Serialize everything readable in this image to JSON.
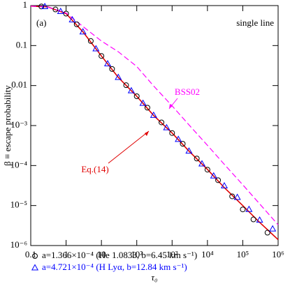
{
  "chart_data": {
    "type": "scatter",
    "x_label": "τ₀",
    "y_label": "β ≡ escape probability",
    "panel_label": "(a)",
    "corner_label": "single line",
    "annotations": [
      {
        "text": "BSS02",
        "color": "#ff00ff"
      },
      {
        "text": "Eq.(14)",
        "color": "#e00000"
      }
    ],
    "xscale": "log",
    "yscale": "log",
    "xlim": [
      0.1,
      1000000
    ],
    "ylim": [
      1e-06,
      1
    ],
    "xticks": [
      0.1,
      1,
      10,
      {
        "value": 100,
        "label": "10²"
      },
      {
        "value": 1000,
        "label": "10³"
      },
      {
        "value": 10000,
        "label": "10⁴"
      },
      {
        "value": 100000,
        "label": "10⁵"
      },
      {
        "value": 1000000,
        "label": "10⁶"
      }
    ],
    "yticks": [
      {
        "value": 1e-06,
        "label": "10⁻⁶"
      },
      {
        "value": 1e-05,
        "label": "10⁻⁵"
      },
      {
        "value": 0.0001,
        "label": "10⁻⁴"
      },
      {
        "value": 0.001,
        "label": "10⁻³"
      },
      0.01,
      0.1,
      1
    ],
    "lines": [
      {
        "name": "Eq.(14)",
        "color": "#e00000",
        "dash": false,
        "x": [
          0.1,
          0.3,
          1,
          3,
          10,
          30,
          100,
          300,
          1000,
          3000,
          10000,
          30000,
          100000,
          300000,
          1000000
        ],
        "values": [
          0.97,
          0.93,
          0.63,
          0.22,
          0.055,
          0.016,
          0.0054,
          0.0018,
          0.00065,
          0.00023,
          8e-05,
          2.8e-05,
          1e-05,
          3.8e-06,
          1.4e-06
        ]
      },
      {
        "name": "BSS02",
        "color": "#ff00ff",
        "dash": true,
        "x": [
          0.1,
          0.3,
          1,
          3,
          10,
          30,
          100,
          300,
          1000,
          3000,
          10000,
          30000,
          100000,
          300000,
          1000000
        ],
        "values": [
          0.97,
          0.93,
          0.65,
          0.3,
          0.13,
          0.07,
          0.03,
          0.0098,
          0.0031,
          0.00104,
          0.00032,
          0.000107,
          3.3e-05,
          1.1e-05,
          3.3e-06
        ]
      }
    ],
    "series": [
      {
        "name": "a=1.366×10⁻⁴ (He 1.0833, b=6.45 km s⁻¹)",
        "color": "#000000",
        "marker": "circle",
        "x": [
          0.2,
          0.5,
          1,
          2,
          5,
          10,
          20,
          50,
          100,
          200,
          500,
          1000,
          2000,
          5000,
          10000,
          20000,
          50000,
          100000,
          200000,
          500000
        ],
        "values": [
          0.95,
          0.8,
          0.63,
          0.34,
          0.13,
          0.055,
          0.026,
          0.0102,
          0.0054,
          0.0028,
          0.0012,
          0.00065,
          0.00035,
          0.00015,
          7.9e-05,
          4.3e-05,
          1.7e-05,
          8e-06,
          4.5e-06,
          2.1e-06
        ]
      },
      {
        "name": "a=4.721×10⁻⁴ (H Lyα, b=12.84 km s⁻¹)",
        "color": "#0000ff",
        "marker": "triangle",
        "x": [
          0.25,
          0.7,
          1.5,
          3,
          7,
          15,
          30,
          70,
          150,
          300,
          700,
          1500,
          3000,
          7000,
          15000,
          30000,
          70000,
          150000,
          300000,
          700000
        ],
        "values": [
          0.94,
          0.71,
          0.44,
          0.22,
          0.083,
          0.035,
          0.016,
          0.0074,
          0.0036,
          0.0018,
          0.00088,
          0.00045,
          0.00023,
          0.00011,
          5.5e-05,
          3.1e-05,
          1.6e-05,
          8e-06,
          4.3e-06,
          2.6e-06
        ]
      }
    ]
  }
}
